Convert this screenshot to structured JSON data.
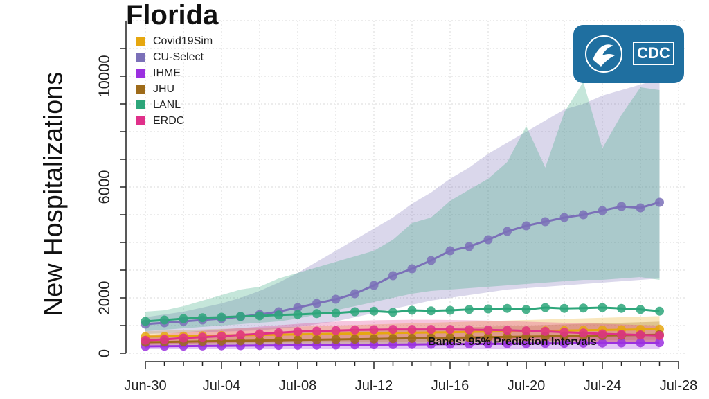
{
  "chart_data": {
    "type": "line",
    "title": "Florida",
    "xlabel": "",
    "ylabel": "New Hospitalizations",
    "x": [
      "Jun-30",
      "Jul-01",
      "Jul-02",
      "Jul-03",
      "Jul-04",
      "Jul-05",
      "Jul-06",
      "Jul-07",
      "Jul-08",
      "Jul-09",
      "Jul-10",
      "Jul-11",
      "Jul-12",
      "Jul-13",
      "Jul-14",
      "Jul-15",
      "Jul-16",
      "Jul-17",
      "Jul-18",
      "Jul-19",
      "Jul-20",
      "Jul-21",
      "Jul-22",
      "Jul-23",
      "Jul-24",
      "Jul-25",
      "Jul-26",
      "Jul-27"
    ],
    "x_ticks": [
      "Jun-30",
      "Jul-04",
      "Jul-08",
      "Jul-12",
      "Jul-16",
      "Jul-20",
      "Jul-24",
      "Jul-28"
    ],
    "y_ticks": [
      0,
      2000,
      6000,
      10000
    ],
    "ylim": [
      0,
      12000
    ],
    "grid": true,
    "legend_position": "top-left",
    "annotation": "Bands: 95% Prediction Intervals",
    "series": [
      {
        "name": "Covid19Sim",
        "color": "#E6A710",
        "values": [
          600,
          610,
          620,
          630,
          640,
          650,
          660,
          670,
          680,
          690,
          700,
          710,
          720,
          730,
          740,
          750,
          760,
          770,
          780,
          790,
          800,
          810,
          820,
          830,
          840,
          850,
          860,
          870
        ],
        "lower": [
          350,
          355,
          360,
          365,
          370,
          375,
          380,
          385,
          390,
          395,
          400,
          405,
          410,
          415,
          420,
          425,
          430,
          435,
          440,
          445,
          450,
          455,
          460,
          465,
          470,
          475,
          480,
          485
        ],
        "upper": [
          800,
          820,
          840,
          860,
          880,
          900,
          920,
          940,
          960,
          980,
          1000,
          1020,
          1040,
          1060,
          1080,
          1100,
          1120,
          1140,
          1160,
          1180,
          1200,
          1220,
          1240,
          1260,
          1280,
          1300,
          1320,
          1340
        ]
      },
      {
        "name": "CU-Select",
        "color": "#7B70B8",
        "values": [
          1050,
          1100,
          1150,
          1200,
          1250,
          1320,
          1400,
          1500,
          1650,
          1800,
          1950,
          2150,
          2450,
          2800,
          3050,
          3350,
          3700,
          3850,
          4100,
          4400,
          4600,
          4750,
          4900,
          5000,
          5150,
          5300,
          5250,
          5450
        ],
        "lower": [
          700,
          720,
          740,
          760,
          780,
          800,
          830,
          880,
          950,
          1050,
          1150,
          1300,
          1450,
          1600,
          1750,
          1900,
          2000,
          2100,
          2200,
          2300,
          2350,
          2400,
          2450,
          2500,
          2550,
          2600,
          2650,
          2700
        ],
        "upper": [
          1300,
          1400,
          1500,
          1650,
          1800,
          2000,
          2250,
          2550,
          2900,
          3300,
          3700,
          4100,
          4500,
          4900,
          5400,
          5800,
          6300,
          6700,
          7200,
          7600,
          8000,
          8400,
          8800,
          9000,
          9300,
          9500,
          9700,
          9900
        ]
      },
      {
        "name": "IHME",
        "color": "#9B30E0",
        "values": [
          250,
          255,
          260,
          265,
          270,
          275,
          280,
          285,
          290,
          295,
          300,
          305,
          310,
          315,
          320,
          325,
          330,
          335,
          340,
          345,
          350,
          355,
          360,
          365,
          370,
          375,
          380,
          385
        ],
        "lower": [
          150,
          150,
          150,
          150,
          150,
          150,
          150,
          150,
          150,
          150,
          150,
          150,
          150,
          150,
          150,
          150,
          150,
          150,
          150,
          150,
          150,
          150,
          150,
          150,
          150,
          150,
          150,
          150
        ],
        "upper": [
          400,
          410,
          420,
          430,
          440,
          450,
          460,
          470,
          480,
          490,
          500,
          510,
          520,
          530,
          540,
          550,
          560,
          570,
          580,
          590,
          600,
          610,
          620,
          630,
          640,
          650,
          660,
          670
        ]
      },
      {
        "name": "JHU",
        "color": "#9E6B1A",
        "values": [
          400,
          410,
          420,
          430,
          440,
          450,
          460,
          470,
          480,
          490,
          500,
          510,
          520,
          530,
          540,
          550,
          560,
          570,
          580,
          590,
          600,
          610,
          620,
          630,
          640,
          650,
          660,
          670
        ],
        "lower": [
          250,
          255,
          260,
          265,
          270,
          275,
          280,
          285,
          290,
          295,
          300,
          305,
          310,
          315,
          320,
          325,
          330,
          335,
          340,
          345,
          350,
          355,
          360,
          365,
          370,
          375,
          380,
          385
        ],
        "upper": [
          600,
          620,
          640,
          660,
          680,
          700,
          720,
          740,
          760,
          780,
          800,
          820,
          840,
          860,
          880,
          900,
          920,
          940,
          960,
          980,
          1000,
          1020,
          1040,
          1060,
          1080,
          1100,
          1120,
          1140
        ]
      },
      {
        "name": "LANL",
        "color": "#2DA67A",
        "values": [
          1150,
          1200,
          1250,
          1280,
          1300,
          1330,
          1350,
          1380,
          1400,
          1430,
          1450,
          1500,
          1520,
          1480,
          1550,
          1530,
          1550,
          1580,
          1600,
          1620,
          1580,
          1650,
          1620,
          1630,
          1650,
          1620,
          1580,
          1520
        ],
        "lower": [
          800,
          850,
          900,
          950,
          1000,
          1050,
          1100,
          1150,
          1250,
          1400,
          1550,
          1700,
          1850,
          2000,
          2150,
          2250,
          2300,
          2350,
          2400,
          2450,
          2500,
          2550,
          2600,
          2650,
          2650,
          2700,
          2750,
          2650
        ],
        "upper": [
          1500,
          1550,
          1700,
          1900,
          2100,
          2300,
          2400,
          2700,
          2900,
          3100,
          3300,
          3500,
          3700,
          4100,
          4700,
          4900,
          5500,
          5900,
          6300,
          6900,
          8200,
          6700,
          8700,
          9800,
          7400,
          8600,
          9600,
          9500
        ]
      },
      {
        "name": "ERDC",
        "color": "#E0308A",
        "values": [
          470,
          500,
          550,
          580,
          620,
          660,
          700,
          740,
          780,
          800,
          820,
          840,
          850,
          860,
          860,
          860,
          860,
          850,
          840,
          830,
          810,
          790,
          760,
          730,
          700,
          680,
          660,
          640
        ],
        "lower": [
          300,
          320,
          340,
          360,
          380,
          400,
          420,
          440,
          460,
          470,
          480,
          490,
          500,
          500,
          500,
          500,
          500,
          490,
          480,
          470,
          460,
          450,
          440,
          430,
          420,
          410,
          400,
          390
        ],
        "upper": [
          650,
          700,
          760,
          810,
          860,
          910,
          960,
          1010,
          1060,
          1100,
          1140,
          1170,
          1190,
          1200,
          1210,
          1210,
          1200,
          1190,
          1180,
          1160,
          1140,
          1120,
          1100,
          1080,
          1060,
          1040,
          1020,
          1000
        ]
      }
    ]
  },
  "logo": {
    "text": "CDC",
    "background": "#1f6fa0"
  }
}
